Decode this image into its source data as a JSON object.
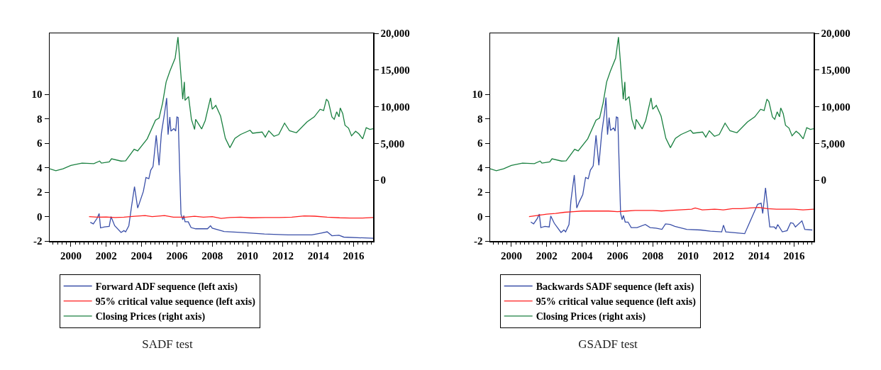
{
  "chart_data": [
    {
      "type": "line",
      "title": "SADF test",
      "legend": "bottom",
      "grid": false,
      "marker": "none",
      "line_style": "solid",
      "xlim": [
        1998.8,
        2017.1
      ],
      "xticks": [
        2000,
        2002,
        2004,
        2006,
        2008,
        2010,
        2012,
        2014,
        2016
      ],
      "ylim": [
        -2,
        15
      ],
      "yticks": [
        -2,
        0,
        2,
        4,
        6,
        8,
        10
      ],
      "y2lim": [
        -8300,
        20000
      ],
      "y2ticks": [
        0,
        {
          "value": 5000,
          "label": "5,000"
        },
        {
          "value": 10000,
          "label": "10,000"
        },
        {
          "value": 15000,
          "label": "15,000"
        },
        {
          "value": 20000,
          "label": "20,000"
        }
      ],
      "series": [
        {
          "name": "Forward ADF sequence (left axis)",
          "color": "#3a4fa8",
          "x": [
            2001.1,
            2001.27,
            2001.5,
            2001.6,
            2001.68,
            2001.9,
            2002.17,
            2002.27,
            2002.48,
            2002.84,
            2003.0,
            2003.1,
            2003.28,
            2003.44,
            2003.6,
            2003.78,
            2003.9,
            2004.1,
            2004.25,
            2004.41,
            2004.52,
            2004.65,
            2004.83,
            2004.99,
            2005.12,
            2005.32,
            2005.42,
            2005.5,
            2005.6,
            2005.66,
            2005.83,
            2005.93,
            2006.0,
            2006.07,
            2006.23,
            2006.33,
            2006.39,
            2006.46,
            2006.64,
            2006.8,
            2007.06,
            2007.4,
            2007.73,
            2007.9,
            2008.0,
            2008.67,
            2009.6,
            2010.95,
            2012.29,
            2013.63,
            2014.16,
            2014.5,
            2014.77,
            2015.17,
            2015.44,
            2017.1
          ],
          "values": [
            -0.47,
            -0.6,
            -0.1,
            0.25,
            -0.93,
            -0.85,
            -0.8,
            0.0,
            -0.75,
            -1.3,
            -1.15,
            -1.25,
            -0.75,
            0.9,
            2.45,
            0.7,
            1.2,
            2.05,
            3.2,
            3.1,
            3.8,
            4.1,
            6.65,
            4.2,
            6.8,
            8.65,
            9.7,
            6.7,
            8.15,
            7.0,
            7.2,
            7.0,
            8.15,
            8.1,
            0.2,
            -0.27,
            0.08,
            -0.43,
            -0.43,
            -0.9,
            -1.0,
            -1.0,
            -1.0,
            -0.75,
            -0.95,
            -1.22,
            -1.3,
            -1.43,
            -1.5,
            -1.5,
            -1.35,
            -1.25,
            -1.57,
            -1.53,
            -1.68,
            -1.78
          ]
        },
        {
          "name": "95% critical value sequence (left axis)",
          "color": "#ff2020",
          "x": [
            2001.03,
            2001.5,
            2002.0,
            2002.5,
            2003.0,
            2003.6,
            2004.2,
            2004.6,
            2005.3,
            2005.8,
            2006.5,
            2007.0,
            2007.5,
            2008.0,
            2008.5,
            2009.0,
            2009.6,
            2010.2,
            2011.0,
            2011.8,
            2012.5,
            2013.2,
            2013.8,
            2014.5,
            2015.2,
            2015.8,
            2016.5,
            2017.1
          ],
          "values": [
            0.0,
            -0.05,
            -0.03,
            -0.08,
            -0.05,
            0.02,
            0.08,
            0.0,
            0.08,
            -0.05,
            -0.05,
            0.02,
            -0.05,
            0.0,
            -0.15,
            -0.08,
            -0.05,
            -0.1,
            -0.08,
            -0.08,
            -0.05,
            0.05,
            0.03,
            -0.05,
            -0.1,
            -0.12,
            -0.12,
            -0.08
          ]
        },
        {
          "name": "Closing Prices (right axis)",
          "color": "#1a8040",
          "axis": "y2",
          "x": [
            1998.8,
            1999.15,
            1999.56,
            2000.0,
            2000.63,
            2001.3,
            2001.63,
            2001.73,
            2002.17,
            2002.3,
            2002.84,
            2003.1,
            2003.58,
            2003.78,
            2004.32,
            2004.79,
            2004.99,
            2005.19,
            2005.39,
            2005.6,
            2005.9,
            2006.06,
            2006.26,
            2006.33,
            2006.42,
            2006.46,
            2006.66,
            2006.82,
            2007.0,
            2007.06,
            2007.4,
            2007.6,
            2007.9,
            2008.0,
            2008.2,
            2008.47,
            2008.74,
            2009.0,
            2009.28,
            2009.6,
            2010.14,
            2010.28,
            2010.82,
            2011.0,
            2011.2,
            2011.49,
            2011.76,
            2012.09,
            2012.37,
            2012.76,
            2013.36,
            2013.77,
            2014.1,
            2014.3,
            2014.46,
            2014.57,
            2014.77,
            2014.9,
            2015.04,
            2015.17,
            2015.24,
            2015.38,
            2015.51,
            2015.71,
            2015.88,
            2016.11,
            2016.29,
            2016.51,
            2016.71,
            2016.92,
            2017.1
          ],
          "values": [
            1550,
            1280,
            1550,
            2000,
            2310,
            2240,
            2590,
            2310,
            2480,
            2900,
            2590,
            2620,
            4200,
            3970,
            5620,
            8170,
            8450,
            10500,
            13380,
            14830,
            16620,
            19480,
            13270,
            11030,
            13380,
            10860,
            11380,
            8280,
            6900,
            8280,
            6970,
            8100,
            11200,
            9650,
            10170,
            8720,
            5690,
            4410,
            5690,
            6210,
            6790,
            6380,
            6550,
            5860,
            6720,
            5970,
            6210,
            7760,
            6720,
            6450,
            7930,
            8620,
            9650,
            9480,
            11030,
            10690,
            8620,
            8280,
            9310,
            8620,
            9830,
            9070,
            7480,
            7070,
            6030,
            6650,
            6310,
            5620,
            7140,
            6900,
            7000
          ]
        }
      ]
    },
    {
      "type": "line",
      "title": "GSADF test",
      "legend": "bottom",
      "grid": false,
      "marker": "none",
      "line_style": "solid",
      "xlim": [
        1998.8,
        2017.1
      ],
      "xticks": [
        2000,
        2002,
        2004,
        2006,
        2008,
        2010,
        2012,
        2014,
        2016
      ],
      "ylim": [
        -2,
        15
      ],
      "yticks": [
        -2,
        0,
        2,
        4,
        6,
        8,
        10
      ],
      "y2lim": [
        -8300,
        20000
      ],
      "y2ticks": [
        0,
        {
          "value": 5000,
          "label": "5,000"
        },
        {
          "value": 10000,
          "label": "10,000"
        },
        {
          "value": 15000,
          "label": "15,000"
        },
        {
          "value": 20000,
          "label": "20,000"
        }
      ],
      "series": [
        {
          "name": "Backwards SADF sequence (left axis)",
          "color": "#3a4fa8",
          "x": [
            2001.1,
            2001.26,
            2001.47,
            2001.58,
            2001.67,
            2001.9,
            2002.14,
            2002.23,
            2002.43,
            2002.81,
            2002.97,
            2003.07,
            2003.26,
            2003.37,
            2003.56,
            2003.7,
            2003.84,
            2004.04,
            2004.2,
            2004.35,
            2004.47,
            2004.63,
            2004.79,
            2004.95,
            2005.11,
            2005.27,
            2005.35,
            2005.44,
            2005.53,
            2005.61,
            2005.78,
            2005.87,
            2005.94,
            2006.02,
            2006.18,
            2006.27,
            2006.34,
            2006.44,
            2006.6,
            2006.78,
            2007.11,
            2007.58,
            2007.85,
            2008.18,
            2008.52,
            2008.72,
            2008.98,
            2009.25,
            2009.92,
            2010.72,
            2011.26,
            2011.9,
            2012.0,
            2012.13,
            2013.2,
            2013.46,
            2013.93,
            2014.13,
            2014.22,
            2014.38,
            2014.62,
            2014.87,
            2014.97,
            2015.07,
            2015.33,
            2015.6,
            2015.8,
            2015.94,
            2016.07,
            2016.44,
            2016.6,
            2017.03
          ],
          "values": [
            -0.45,
            -0.6,
            -0.15,
            0.2,
            -0.9,
            -0.8,
            -0.85,
            0.05,
            -0.55,
            -1.3,
            -1.1,
            -1.25,
            -0.65,
            1.3,
            3.4,
            0.7,
            1.2,
            1.8,
            3.2,
            3.1,
            3.8,
            4.15,
            6.65,
            4.2,
            6.8,
            8.5,
            9.75,
            6.7,
            8.1,
            7.05,
            7.25,
            7.0,
            8.15,
            8.1,
            0.25,
            -0.25,
            0.1,
            -0.45,
            -0.45,
            -0.9,
            -0.9,
            -0.65,
            -0.9,
            -0.95,
            -1.05,
            -0.6,
            -0.65,
            -0.8,
            -1.05,
            -1.1,
            -1.2,
            -1.25,
            -0.7,
            -1.25,
            -1.4,
            -0.55,
            1.0,
            1.1,
            0.25,
            2.35,
            -0.85,
            -0.85,
            -1.0,
            -0.65,
            -1.25,
            -1.15,
            -0.5,
            -0.55,
            -0.85,
            -0.35,
            -1.05,
            -1.1
          ]
        },
        {
          "name": "95% critical value sequence (left axis)",
          "color": "#ff2020",
          "x": [
            2001.0,
            2001.5,
            2002.0,
            2002.5,
            2003.0,
            2003.5,
            2004.0,
            2004.5,
            2005.0,
            2005.5,
            2006.0,
            2006.5,
            2007.0,
            2007.5,
            2008.0,
            2008.5,
            2009.0,
            2009.5,
            2010.2,
            2010.4,
            2010.8,
            2011.5,
            2012.0,
            2012.5,
            2013.0,
            2013.5,
            2014.0,
            2014.5,
            2015.0,
            2015.5,
            2016.0,
            2016.5,
            2017.1
          ],
          "values": [
            0.0,
            0.1,
            0.2,
            0.25,
            0.35,
            0.4,
            0.45,
            0.45,
            0.45,
            0.45,
            0.4,
            0.45,
            0.5,
            0.5,
            0.5,
            0.45,
            0.5,
            0.55,
            0.6,
            0.7,
            0.55,
            0.6,
            0.55,
            0.65,
            0.65,
            0.7,
            0.75,
            0.65,
            0.6,
            0.6,
            0.6,
            0.55,
            0.6
          ]
        },
        {
          "name": "Closing Prices (right axis)",
          "color": "#1a8040",
          "axis": "y2",
          "x": [
            1998.8,
            1999.15,
            1999.56,
            2000.0,
            2000.63,
            2001.3,
            2001.63,
            2001.73,
            2002.17,
            2002.3,
            2002.84,
            2003.1,
            2003.58,
            2003.78,
            2004.32,
            2004.79,
            2004.99,
            2005.19,
            2005.39,
            2005.6,
            2005.9,
            2006.06,
            2006.26,
            2006.33,
            2006.42,
            2006.46,
            2006.66,
            2006.82,
            2007.0,
            2007.06,
            2007.4,
            2007.6,
            2007.9,
            2008.0,
            2008.2,
            2008.47,
            2008.74,
            2009.0,
            2009.28,
            2009.6,
            2010.14,
            2010.28,
            2010.82,
            2011.0,
            2011.2,
            2011.49,
            2011.76,
            2012.09,
            2012.37,
            2012.76,
            2013.36,
            2013.77,
            2014.1,
            2014.3,
            2014.46,
            2014.57,
            2014.77,
            2014.9,
            2015.04,
            2015.17,
            2015.24,
            2015.38,
            2015.51,
            2015.71,
            2015.88,
            2016.11,
            2016.29,
            2016.51,
            2016.71,
            2016.92,
            2017.1
          ],
          "values": [
            1550,
            1280,
            1550,
            2000,
            2310,
            2240,
            2590,
            2310,
            2480,
            2900,
            2590,
            2620,
            4200,
            3970,
            5620,
            8170,
            8450,
            10500,
            13380,
            14830,
            16620,
            19480,
            13270,
            11030,
            13380,
            10860,
            11380,
            8280,
            6900,
            8280,
            6970,
            8100,
            11200,
            9650,
            10170,
            8720,
            5690,
            4410,
            5690,
            6210,
            6790,
            6380,
            6550,
            5860,
            6720,
            5970,
            6210,
            7760,
            6720,
            6450,
            7930,
            8620,
            9650,
            9480,
            11030,
            10690,
            8620,
            8280,
            9310,
            8620,
            9830,
            9070,
            7480,
            7070,
            6030,
            6650,
            6310,
            5620,
            7140,
            6900,
            7000
          ]
        }
      ]
    }
  ]
}
